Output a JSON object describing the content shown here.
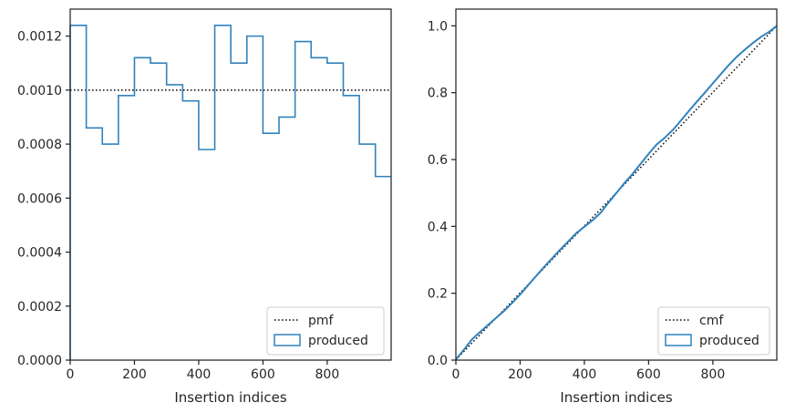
{
  "chart_data": [
    {
      "type": "histogram-step",
      "xlabel": "Insertion indices",
      "ylabel": "",
      "xlim": [
        0,
        999
      ],
      "ylim": [
        0,
        0.0013
      ],
      "xticks": [
        0,
        200,
        400,
        600,
        800
      ],
      "yticks": [
        0,
        0.0002,
        0.0004,
        0.0006,
        0.0008,
        0.001,
        0.0012
      ],
      "ytick_labels": [
        "0.0000",
        "0.0002",
        "0.0004",
        "0.0006",
        "0.0008",
        "0.0010",
        "0.0012"
      ],
      "legend_position": "lower right",
      "series": [
        {
          "name": "pmf",
          "style": "dotted",
          "color": "#000000",
          "x": [
            0,
            999
          ],
          "values": [
            0.001,
            0.001
          ]
        },
        {
          "name": "produced",
          "style": "step",
          "color": "#3182bd",
          "bin_edges": [
            0,
            50,
            100,
            150,
            200,
            250,
            300,
            350,
            400,
            450,
            500,
            550,
            600,
            650,
            700,
            750,
            800,
            850,
            900,
            950,
            999
          ],
          "values": [
            0.00124,
            0.00086,
            0.0008,
            0.00098,
            0.00112,
            0.0011,
            0.00102,
            0.00096,
            0.00078,
            0.00124,
            0.0011,
            0.0012,
            0.00084,
            0.0009,
            0.00118,
            0.00112,
            0.0011,
            0.00098,
            0.0008,
            0.00068
          ]
        }
      ]
    },
    {
      "type": "line",
      "xlabel": "Insertion indices",
      "ylabel": "",
      "xlim": [
        0,
        999
      ],
      "ylim": [
        0,
        1.05
      ],
      "xticks": [
        0,
        200,
        400,
        600,
        800
      ],
      "yticks": [
        0,
        0.2,
        0.4,
        0.6,
        0.8,
        1.0
      ],
      "ytick_labels": [
        "0.0",
        "0.2",
        "0.4",
        "0.6",
        "0.8",
        "1.0"
      ],
      "legend_position": "lower right",
      "series": [
        {
          "name": "cmf",
          "style": "dotted",
          "color": "#000000",
          "x": [
            0,
            999
          ],
          "values": [
            0.001,
            1.0
          ]
        },
        {
          "name": "produced",
          "style": "solid",
          "color": "#3182bd",
          "x": [
            0,
            25,
            50,
            75,
            100,
            125,
            150,
            175,
            200,
            225,
            250,
            275,
            300,
            325,
            350,
            375,
            400,
            425,
            450,
            475,
            500,
            525,
            550,
            575,
            600,
            625,
            650,
            675,
            700,
            725,
            750,
            775,
            800,
            825,
            850,
            875,
            900,
            925,
            950,
            975,
            999
          ],
          "values": [
            0.002,
            0.031,
            0.062,
            0.084,
            0.105,
            0.126,
            0.147,
            0.171,
            0.196,
            0.224,
            0.252,
            0.279,
            0.305,
            0.331,
            0.355,
            0.38,
            0.399,
            0.418,
            0.44,
            0.471,
            0.5,
            0.53,
            0.557,
            0.587,
            0.617,
            0.645,
            0.665,
            0.688,
            0.716,
            0.745,
            0.773,
            0.8,
            0.828,
            0.856,
            0.883,
            0.908,
            0.929,
            0.949,
            0.967,
            0.982,
            1.0
          ]
        }
      ]
    }
  ]
}
